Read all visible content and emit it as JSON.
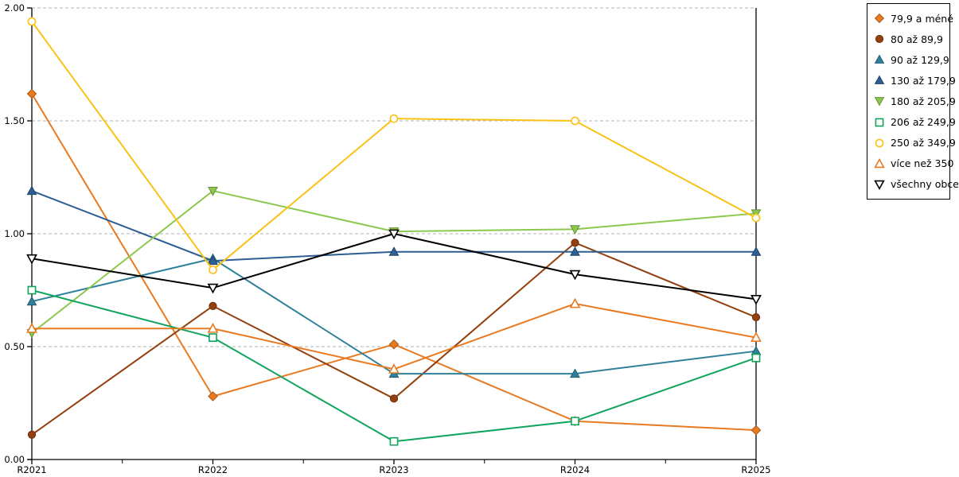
{
  "chart_data": {
    "type": "line",
    "title": "",
    "xlabel": "",
    "ylabel": "",
    "x_categories": [
      "R2021",
      "R2022",
      "R2023",
      "R2024",
      "R2025"
    ],
    "y_tick_labels": [
      "0.00",
      "0.50",
      "1.00",
      "1.50",
      "2.00"
    ],
    "y_ticks": [
      0.0,
      0.5,
      1.0,
      1.5,
      2.0
    ],
    "ylim": [
      0,
      2
    ],
    "grid": "horizontal-dashed",
    "grid_color": "#b0b0b0",
    "axis_color": "#000000",
    "legend_position": "top-right",
    "series": [
      {
        "name": "79,9 a méně",
        "marker": "diamond",
        "style": "filled",
        "color": "#e87a22",
        "values": [
          1.62,
          0.28,
          0.51,
          0.17,
          0.13
        ]
      },
      {
        "name": "80 až 89,9",
        "marker": "circle",
        "style": "filled",
        "color": "#94400f",
        "values": [
          0.11,
          0.68,
          0.27,
          0.96,
          0.63
        ]
      },
      {
        "name": "90 až 129,9",
        "marker": "triangle-up",
        "style": "filled",
        "color": "#2f809b",
        "values": [
          0.7,
          0.89,
          0.38,
          0.38,
          0.48
        ]
      },
      {
        "name": "130 až 179,9",
        "marker": "triangle-up",
        "style": "filled",
        "color": "#2e5e93",
        "values": [
          1.19,
          0.88,
          0.92,
          0.92,
          0.92
        ]
      },
      {
        "name": "180 až 205,9",
        "marker": "triangle-down",
        "style": "filled",
        "color": "#8cc84e",
        "values": [
          0.56,
          1.19,
          1.01,
          1.02,
          1.09
        ]
      },
      {
        "name": "206 až 249,9",
        "marker": "square",
        "style": "open",
        "color": "#10a45c",
        "values": [
          0.75,
          0.54,
          0.08,
          0.17,
          0.45
        ]
      },
      {
        "name": "250 až 349,9",
        "marker": "circle",
        "style": "open",
        "color": "#fac117",
        "values": [
          1.94,
          0.84,
          1.51,
          1.5,
          1.07
        ]
      },
      {
        "name": "více než 350",
        "marker": "triangle-up",
        "style": "open",
        "color": "#e87a22",
        "values": [
          0.58,
          0.58,
          0.4,
          0.69,
          0.54
        ]
      },
      {
        "name": "všechny obce",
        "marker": "triangle-down",
        "style": "open",
        "color": "#000000",
        "values": [
          0.89,
          0.76,
          1.0,
          0.82,
          0.71
        ]
      }
    ]
  }
}
